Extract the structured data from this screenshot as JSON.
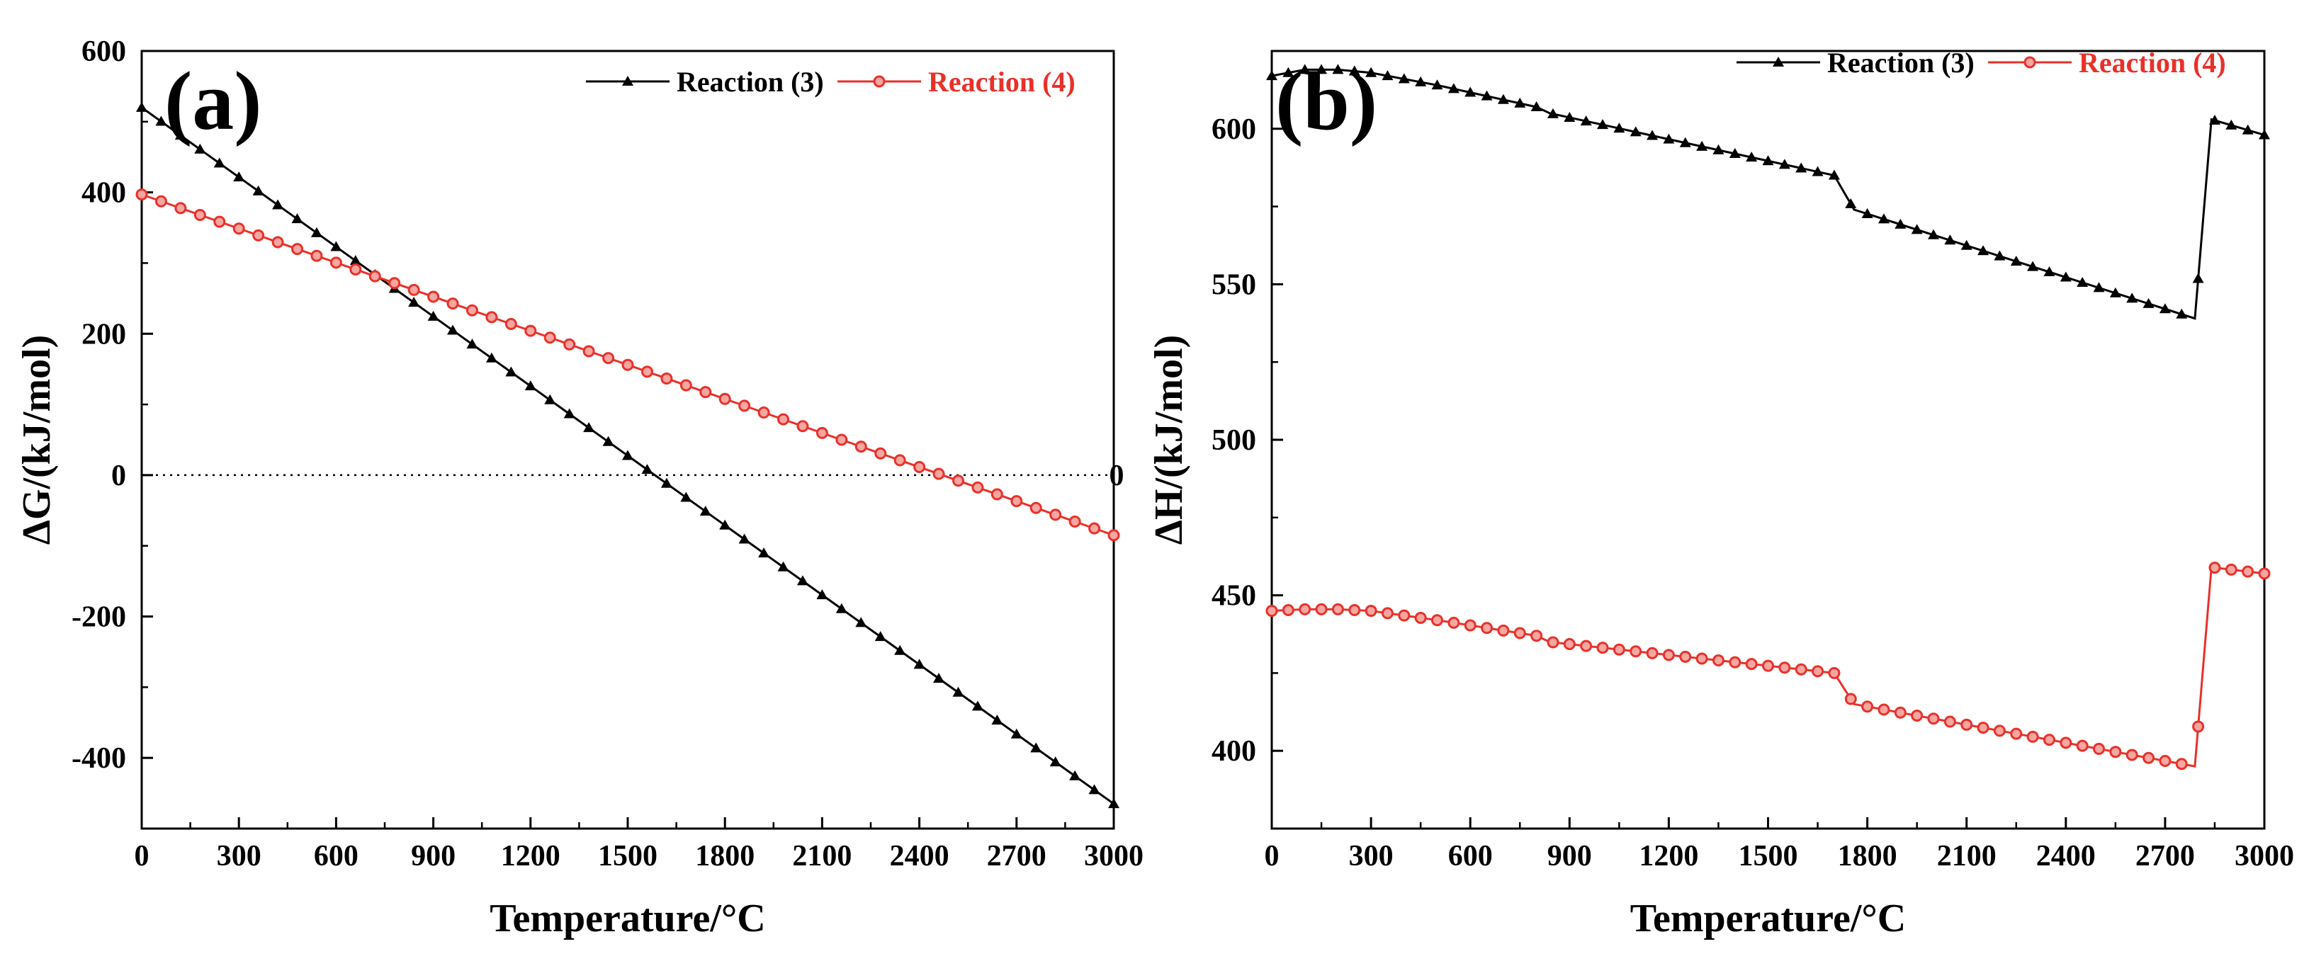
{
  "chart_data": [
    {
      "type": "line",
      "panel_label": "(a)",
      "xlabel": "Temperature/°C",
      "ylabel": "ΔG/(kJ/mol)",
      "xlim": [
        0,
        3000
      ],
      "ylim": [
        -500,
        600
      ],
      "xticks": [
        0,
        300,
        600,
        900,
        1200,
        1500,
        1800,
        2100,
        2400,
        2700,
        3000
      ],
      "yticks": [
        -400,
        -200,
        0,
        200,
        400,
        600
      ],
      "reference_line": {
        "y": 0,
        "label": "0",
        "style": "dotted"
      },
      "legend_position": "top-right",
      "series": [
        {
          "name": "Reaction (3)",
          "color": "#000000",
          "marker": "triangle",
          "x": [
            0,
            3000
          ],
          "y": [
            520,
            -465
          ],
          "marker_step": 60
        },
        {
          "name": "Reaction (4)",
          "color": "#e8312a",
          "marker": "circle",
          "x": [
            0,
            3000
          ],
          "y": [
            397,
            -85
          ],
          "marker_step": 60
        }
      ]
    },
    {
      "type": "line",
      "panel_label": "(b)",
      "xlabel": "Temperature/°C",
      "ylabel": "ΔH/(kJ/mol)",
      "xlim": [
        0,
        3000
      ],
      "ylim": [
        375,
        625
      ],
      "xticks": [
        0,
        300,
        600,
        900,
        1200,
        1500,
        1800,
        2100,
        2400,
        2700,
        3000
      ],
      "yticks": [
        400,
        450,
        500,
        550,
        600
      ],
      "legend_position": "top-right",
      "series": [
        {
          "name": "Reaction (3)",
          "color": "#000000",
          "marker": "triangle",
          "x": [
            0,
            100,
            200,
            300,
            500,
            800,
            840,
            1700,
            1760,
            2790,
            2840,
            3000
          ],
          "y": [
            617,
            619,
            619,
            618,
            614,
            607,
            605,
            585,
            574,
            539,
            603,
            598
          ],
          "marker_step": 50
        },
        {
          "name": "Reaction (4)",
          "color": "#e8312a",
          "marker": "circle",
          "x": [
            0,
            100,
            200,
            300,
            500,
            800,
            840,
            1700,
            1760,
            2790,
            2840,
            3000
          ],
          "y": [
            445,
            445.5,
            445.5,
            445,
            442,
            437,
            435,
            425,
            415,
            395,
            459,
            457
          ],
          "marker_step": 50
        }
      ]
    }
  ]
}
